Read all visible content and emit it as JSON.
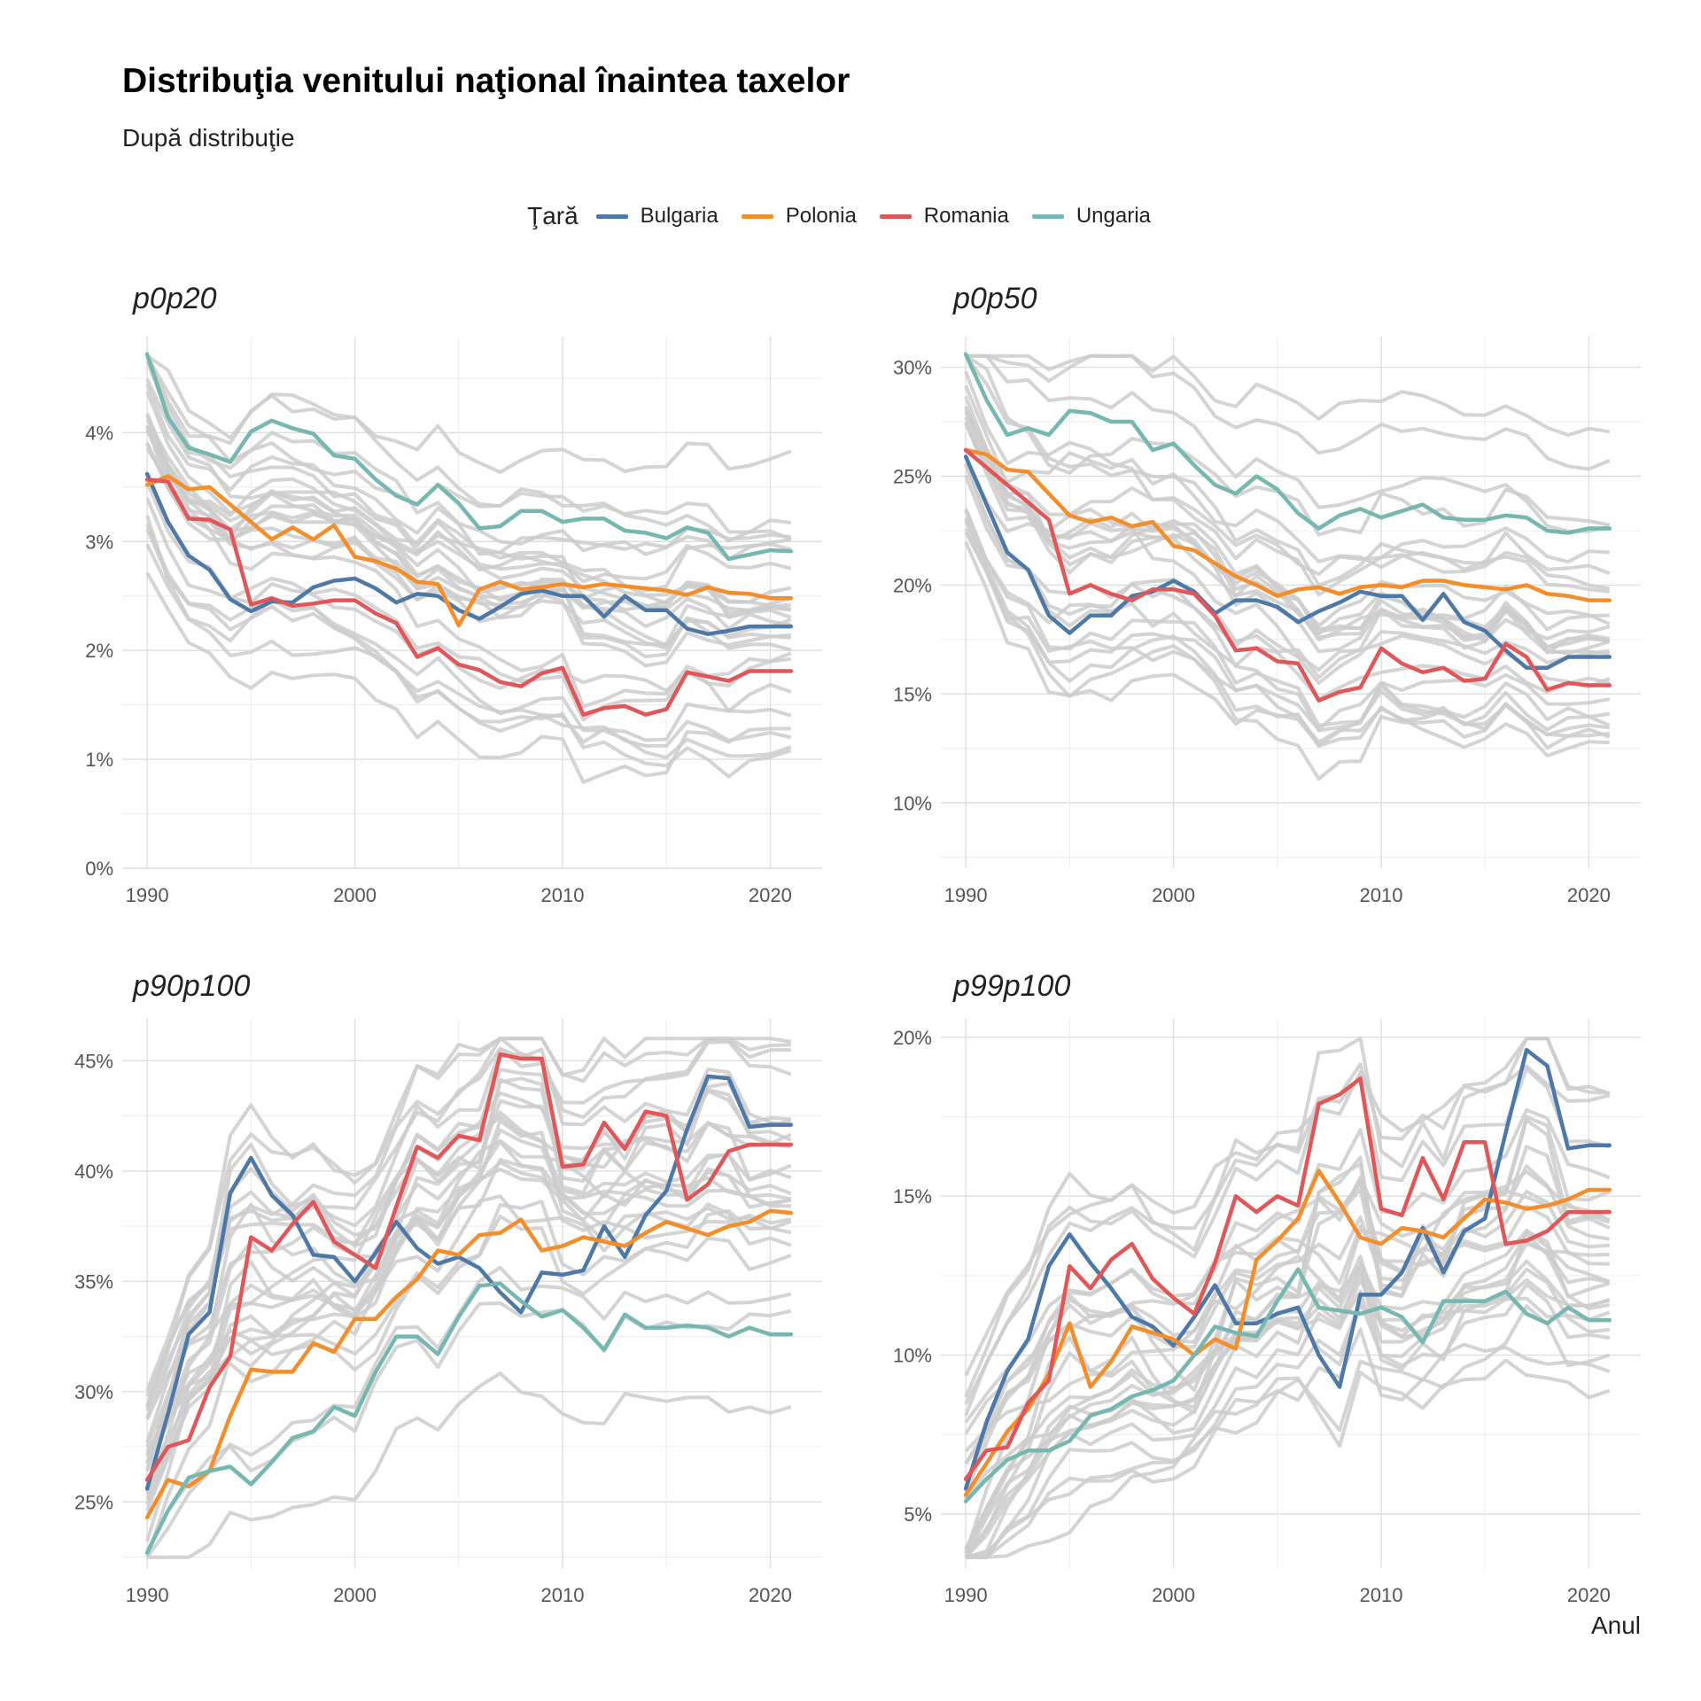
{
  "title": "Distribuţia venitului naţional înaintea taxelor",
  "subtitle": "După distribuţie",
  "legend": {
    "title": "Ţară",
    "placement": "top-center",
    "items": [
      {
        "label": "Bulgaria",
        "color": "#4e79a7"
      },
      {
        "label": "Polonia",
        "color": "#f28e2b"
      },
      {
        "label": "Romania",
        "color": "#e15759"
      },
      {
        "label": "Ungaria",
        "color": "#76b7b2"
      }
    ]
  },
  "chart_data": [
    {
      "type": "line",
      "title": "p0p20",
      "xlabel": "",
      "ylabel": "",
      "xlim": [
        1990,
        2021
      ],
      "ylim": [
        0,
        4.8
      ],
      "x_ticks": [
        1990,
        2000,
        2010,
        2020
      ],
      "y_ticks": [
        0,
        1,
        2,
        3,
        4
      ],
      "y_tick_labels": [
        "0%",
        "1%",
        "2%",
        "3%",
        "4%"
      ],
      "grid": true,
      "background_series_color": "#cccccc",
      "x": [
        1990,
        1991,
        1992,
        1993,
        1994,
        1995,
        1996,
        1997,
        1998,
        1999,
        2000,
        2001,
        2002,
        2003,
        2004,
        2005,
        2006,
        2007,
        2008,
        2009,
        2010,
        2011,
        2012,
        2013,
        2014,
        2015,
        2016,
        2017,
        2018,
        2019,
        2020,
        2021
      ],
      "series": [
        {
          "name": "Bulgaria",
          "color": "#4e79a7",
          "values": [
            3.62,
            3.18,
            2.87,
            2.74,
            2.47,
            2.36,
            2.45,
            2.44,
            2.58,
            2.64,
            2.66,
            2.57,
            2.44,
            2.52,
            2.5,
            2.37,
            2.29,
            2.4,
            2.52,
            2.55,
            2.5,
            2.5,
            2.31,
            2.5,
            2.37,
            2.37,
            2.2,
            2.15,
            2.18,
            2.22,
            2.22,
            2.22
          ]
        },
        {
          "name": "Polonia",
          "color": "#f28e2b",
          "values": [
            3.52,
            3.6,
            3.48,
            3.5,
            3.34,
            3.18,
            3.02,
            3.13,
            3.02,
            3.15,
            2.86,
            2.82,
            2.75,
            2.63,
            2.61,
            2.23,
            2.56,
            2.63,
            2.56,
            2.58,
            2.61,
            2.58,
            2.61,
            2.59,
            2.57,
            2.55,
            2.51,
            2.58,
            2.53,
            2.52,
            2.48,
            2.48
          ]
        },
        {
          "name": "Romania",
          "color": "#e15759",
          "values": [
            3.57,
            3.55,
            3.21,
            3.2,
            3.11,
            2.42,
            2.48,
            2.41,
            2.43,
            2.46,
            2.46,
            2.34,
            2.25,
            1.94,
            2.02,
            1.87,
            1.82,
            1.71,
            1.67,
            1.79,
            1.84,
            1.41,
            1.47,
            1.49,
            1.41,
            1.46,
            1.8,
            1.76,
            1.72,
            1.81,
            1.81,
            1.81
          ]
        },
        {
          "name": "Ungaria",
          "color": "#76b7b2",
          "values": [
            4.72,
            4.14,
            3.86,
            3.8,
            3.73,
            4.01,
            4.11,
            4.04,
            3.99,
            3.79,
            3.76,
            3.57,
            3.42,
            3.34,
            3.52,
            3.35,
            3.12,
            3.14,
            3.28,
            3.28,
            3.18,
            3.21,
            3.21,
            3.1,
            3.08,
            3.03,
            3.13,
            3.08,
            2.84,
            2.88,
            2.92,
            2.91
          ]
        }
      ]
    },
    {
      "type": "line",
      "title": "p0p50",
      "xlabel": "",
      "ylabel": "",
      "xlim": [
        1990,
        2021
      ],
      "ylim": [
        7,
        31
      ],
      "x_ticks": [
        1990,
        2000,
        2010,
        2020
      ],
      "y_ticks": [
        10,
        15,
        20,
        25,
        30
      ],
      "y_tick_labels": [
        "10%",
        "15%",
        "20%",
        "25%",
        "30%"
      ],
      "grid": true,
      "background_series_color": "#cccccc",
      "x": [
        1990,
        1991,
        1992,
        1993,
        1994,
        1995,
        1996,
        1997,
        1998,
        1999,
        2000,
        2001,
        2002,
        2003,
        2004,
        2005,
        2006,
        2007,
        2008,
        2009,
        2010,
        2011,
        2012,
        2013,
        2014,
        2015,
        2016,
        2017,
        2018,
        2019,
        2020,
        2021
      ],
      "series": [
        {
          "name": "Bulgaria",
          "color": "#4e79a7",
          "values": [
            25.9,
            23.7,
            21.5,
            20.7,
            18.6,
            17.8,
            18.6,
            18.6,
            19.5,
            19.7,
            20.2,
            19.7,
            18.7,
            19.3,
            19.3,
            19.0,
            18.3,
            18.8,
            19.2,
            19.7,
            19.5,
            19.5,
            18.4,
            19.6,
            18.3,
            17.9,
            17.0,
            16.2,
            16.2,
            16.7,
            16.7,
            16.7
          ]
        },
        {
          "name": "Polonia",
          "color": "#f28e2b",
          "values": [
            26.2,
            26.0,
            25.3,
            25.2,
            24.2,
            23.2,
            22.9,
            23.1,
            22.7,
            22.9,
            21.8,
            21.6,
            21.0,
            20.4,
            20.0,
            19.5,
            19.8,
            19.9,
            19.6,
            19.9,
            20.0,
            19.9,
            20.2,
            20.2,
            20.0,
            19.9,
            19.8,
            20.0,
            19.6,
            19.5,
            19.3,
            19.3
          ]
        },
        {
          "name": "Romania",
          "color": "#e15759",
          "values": [
            26.2,
            25.4,
            24.6,
            23.8,
            23.0,
            19.6,
            20.0,
            19.6,
            19.3,
            19.8,
            19.8,
            19.6,
            18.6,
            17.0,
            17.1,
            16.5,
            16.4,
            14.7,
            15.1,
            15.3,
            17.1,
            16.4,
            16.0,
            16.2,
            15.6,
            15.7,
            17.3,
            16.7,
            15.2,
            15.5,
            15.4,
            15.4
          ]
        },
        {
          "name": "Ungaria",
          "color": "#76b7b2",
          "values": [
            30.6,
            28.5,
            26.9,
            27.2,
            26.9,
            28.0,
            27.9,
            27.5,
            27.5,
            26.2,
            26.5,
            25.5,
            24.6,
            24.2,
            25.0,
            24.4,
            23.3,
            22.6,
            23.2,
            23.5,
            23.1,
            23.4,
            23.7,
            23.1,
            23.0,
            23.0,
            23.2,
            23.1,
            22.5,
            22.4,
            22.6,
            22.6
          ]
        }
      ]
    },
    {
      "type": "line",
      "title": "p90p100",
      "xlabel": "",
      "ylabel": "",
      "xlim": [
        1990,
        2021
      ],
      "ylim": [
        22,
        46.5
      ],
      "x_ticks": [
        1990,
        2000,
        2010,
        2020
      ],
      "y_ticks": [
        25,
        30,
        35,
        40,
        45
      ],
      "y_tick_labels": [
        "25%",
        "30%",
        "35%",
        "40%",
        "45%"
      ],
      "grid": true,
      "background_series_color": "#cccccc",
      "x": [
        1990,
        1991,
        1992,
        1993,
        1994,
        1995,
        1996,
        1997,
        1998,
        1999,
        2000,
        2001,
        2002,
        2003,
        2004,
        2005,
        2006,
        2007,
        2008,
        2009,
        2010,
        2011,
        2012,
        2013,
        2014,
        2015,
        2016,
        2017,
        2018,
        2019,
        2020,
        2021
      ],
      "series": [
        {
          "name": "Bulgaria",
          "color": "#4e79a7",
          "values": [
            25.6,
            29.0,
            32.6,
            33.6,
            39.0,
            40.6,
            38.9,
            38.0,
            36.2,
            36.1,
            35.0,
            36.3,
            37.7,
            36.5,
            35.8,
            36.1,
            35.6,
            34.5,
            33.6,
            35.4,
            35.3,
            35.5,
            37.5,
            36.1,
            38.0,
            39.1,
            41.9,
            44.3,
            44.2,
            42.0,
            42.1,
            42.1
          ]
        },
        {
          "name": "Polonia",
          "color": "#f28e2b",
          "values": [
            24.3,
            26.0,
            25.7,
            26.4,
            28.9,
            31.0,
            30.9,
            30.9,
            32.2,
            31.8,
            33.3,
            33.3,
            34.3,
            35.1,
            36.4,
            36.2,
            37.1,
            37.2,
            37.8,
            36.4,
            36.6,
            37.0,
            36.8,
            36.6,
            37.2,
            37.7,
            37.4,
            37.1,
            37.5,
            37.7,
            38.2,
            38.1
          ]
        },
        {
          "name": "Romania",
          "color": "#e15759",
          "values": [
            26.0,
            27.5,
            27.8,
            30.2,
            31.6,
            37.0,
            36.4,
            37.6,
            38.6,
            36.8,
            36.2,
            35.6,
            38.4,
            41.1,
            40.6,
            41.6,
            41.4,
            45.3,
            45.1,
            45.1,
            40.2,
            40.3,
            42.2,
            41.0,
            42.7,
            42.5,
            38.7,
            39.4,
            40.9,
            41.2,
            41.2,
            41.2
          ]
        },
        {
          "name": "Ungaria",
          "color": "#76b7b2",
          "values": [
            22.7,
            24.6,
            26.1,
            26.4,
            26.6,
            25.8,
            26.8,
            27.9,
            28.2,
            29.3,
            28.9,
            30.9,
            32.5,
            32.5,
            31.7,
            33.4,
            34.8,
            34.9,
            34.1,
            33.4,
            33.7,
            32.9,
            31.9,
            33.5,
            32.9,
            32.9,
            33.0,
            32.9,
            32.5,
            32.9,
            32.6,
            32.6
          ]
        }
      ]
    },
    {
      "type": "line",
      "title": "p99p100",
      "xlabel": "Anul",
      "ylabel": "",
      "xlim": [
        1990,
        2021
      ],
      "ylim": [
        3.3,
        20.3
      ],
      "x_ticks": [
        1990,
        2000,
        2010,
        2020
      ],
      "y_ticks": [
        5,
        10,
        15,
        20
      ],
      "y_tick_labels": [
        "5%",
        "10%",
        "15%",
        "20%"
      ],
      "grid": true,
      "background_series_color": "#cccccc",
      "x": [
        1990,
        1991,
        1992,
        1993,
        1994,
        1995,
        1996,
        1997,
        1998,
        1999,
        2000,
        2001,
        2002,
        2003,
        2004,
        2005,
        2006,
        2007,
        2008,
        2009,
        2010,
        2011,
        2012,
        2013,
        2014,
        2015,
        2016,
        2017,
        2018,
        2019,
        2020,
        2021
      ],
      "series": [
        {
          "name": "Bulgaria",
          "color": "#4e79a7",
          "values": [
            5.8,
            7.9,
            9.5,
            10.5,
            12.8,
            13.8,
            12.9,
            12.1,
            11.2,
            10.9,
            10.3,
            11.2,
            12.2,
            11.0,
            11.0,
            11.3,
            11.5,
            10.0,
            9.0,
            11.9,
            11.9,
            12.6,
            14.0,
            12.6,
            13.9,
            14.3,
            17.0,
            19.6,
            19.1,
            16.5,
            16.6,
            16.6
          ]
        },
        {
          "name": "Polonia",
          "color": "#f28e2b",
          "values": [
            5.6,
            6.6,
            7.6,
            8.3,
            9.4,
            11.0,
            9.0,
            9.8,
            10.9,
            10.7,
            10.5,
            10.0,
            10.5,
            10.2,
            13.0,
            13.6,
            14.3,
            15.8,
            14.8,
            13.7,
            13.5,
            14.0,
            13.9,
            13.7,
            14.3,
            14.9,
            14.8,
            14.6,
            14.7,
            14.9,
            15.2,
            15.2
          ]
        },
        {
          "name": "Romania",
          "color": "#e15759",
          "values": [
            6.1,
            7.0,
            7.1,
            8.5,
            9.2,
            12.8,
            12.1,
            13.0,
            13.5,
            12.4,
            11.8,
            11.3,
            12.9,
            15.0,
            14.5,
            15.0,
            14.7,
            17.9,
            18.2,
            18.7,
            14.6,
            14.4,
            16.2,
            14.9,
            16.7,
            16.7,
            13.5,
            13.6,
            13.9,
            14.5,
            14.5,
            14.5
          ]
        },
        {
          "name": "Ungaria",
          "color": "#76b7b2",
          "values": [
            5.4,
            6.1,
            6.7,
            7.0,
            7.0,
            7.3,
            8.1,
            8.3,
            8.7,
            8.9,
            9.2,
            10.0,
            10.9,
            10.7,
            10.6,
            11.7,
            12.7,
            11.5,
            11.4,
            11.3,
            11.5,
            11.2,
            10.4,
            11.7,
            11.7,
            11.7,
            12.0,
            11.3,
            11.0,
            11.5,
            11.1,
            11.1
          ]
        }
      ]
    }
  ]
}
